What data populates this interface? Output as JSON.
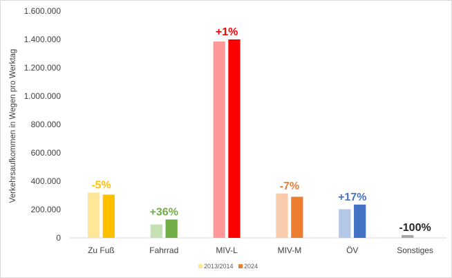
{
  "chart_data": {
    "type": "bar",
    "ylabel": "Verkehrsaufkommen  in Wegen pro Werktag",
    "xlabel": "",
    "ylim": [
      0,
      1600000
    ],
    "y_ticks": [
      "0",
      "200.000",
      "400.000",
      "600.000",
      "800.000",
      "1.000.000",
      "1.200.000",
      "1.400.000",
      "1.600.000"
    ],
    "grid": false,
    "legend_position": "bottom",
    "categories": [
      "Zu Fuß",
      "Fahrrad",
      "MIV-L",
      "MIV-M",
      "ÖV",
      "Sonstiges"
    ],
    "series": [
      {
        "name": "2013/2014",
        "values": [
          320000,
          95000,
          1385000,
          313000,
          202000,
          20000
        ],
        "colors": [
          "#FFE699",
          "#C5E0B4",
          "#FF9999",
          "#F8CBAD",
          "#B4C7E7",
          "#A6A6A6"
        ]
      },
      {
        "name": "2024",
        "values": [
          305000,
          130000,
          1400000,
          290000,
          235000,
          0
        ],
        "colors": [
          "#FFC000",
          "#70AD47",
          "#FF0000",
          "#ED7D31",
          "#4472C4",
          "#808080"
        ]
      }
    ],
    "change_labels": [
      {
        "text": "-5%",
        "color": "#FFC000"
      },
      {
        "text": "+36%",
        "color": "#70AD47"
      },
      {
        "text": "+1%",
        "color": "#FF0000"
      },
      {
        "text": "-7%",
        "color": "#ED7D31"
      },
      {
        "text": "+17%",
        "color": "#4472C4"
      },
      {
        "text": "-100%",
        "color": "#262626"
      }
    ],
    "legend_colors": [
      "#FFE699",
      "#ED7D31"
    ]
  }
}
